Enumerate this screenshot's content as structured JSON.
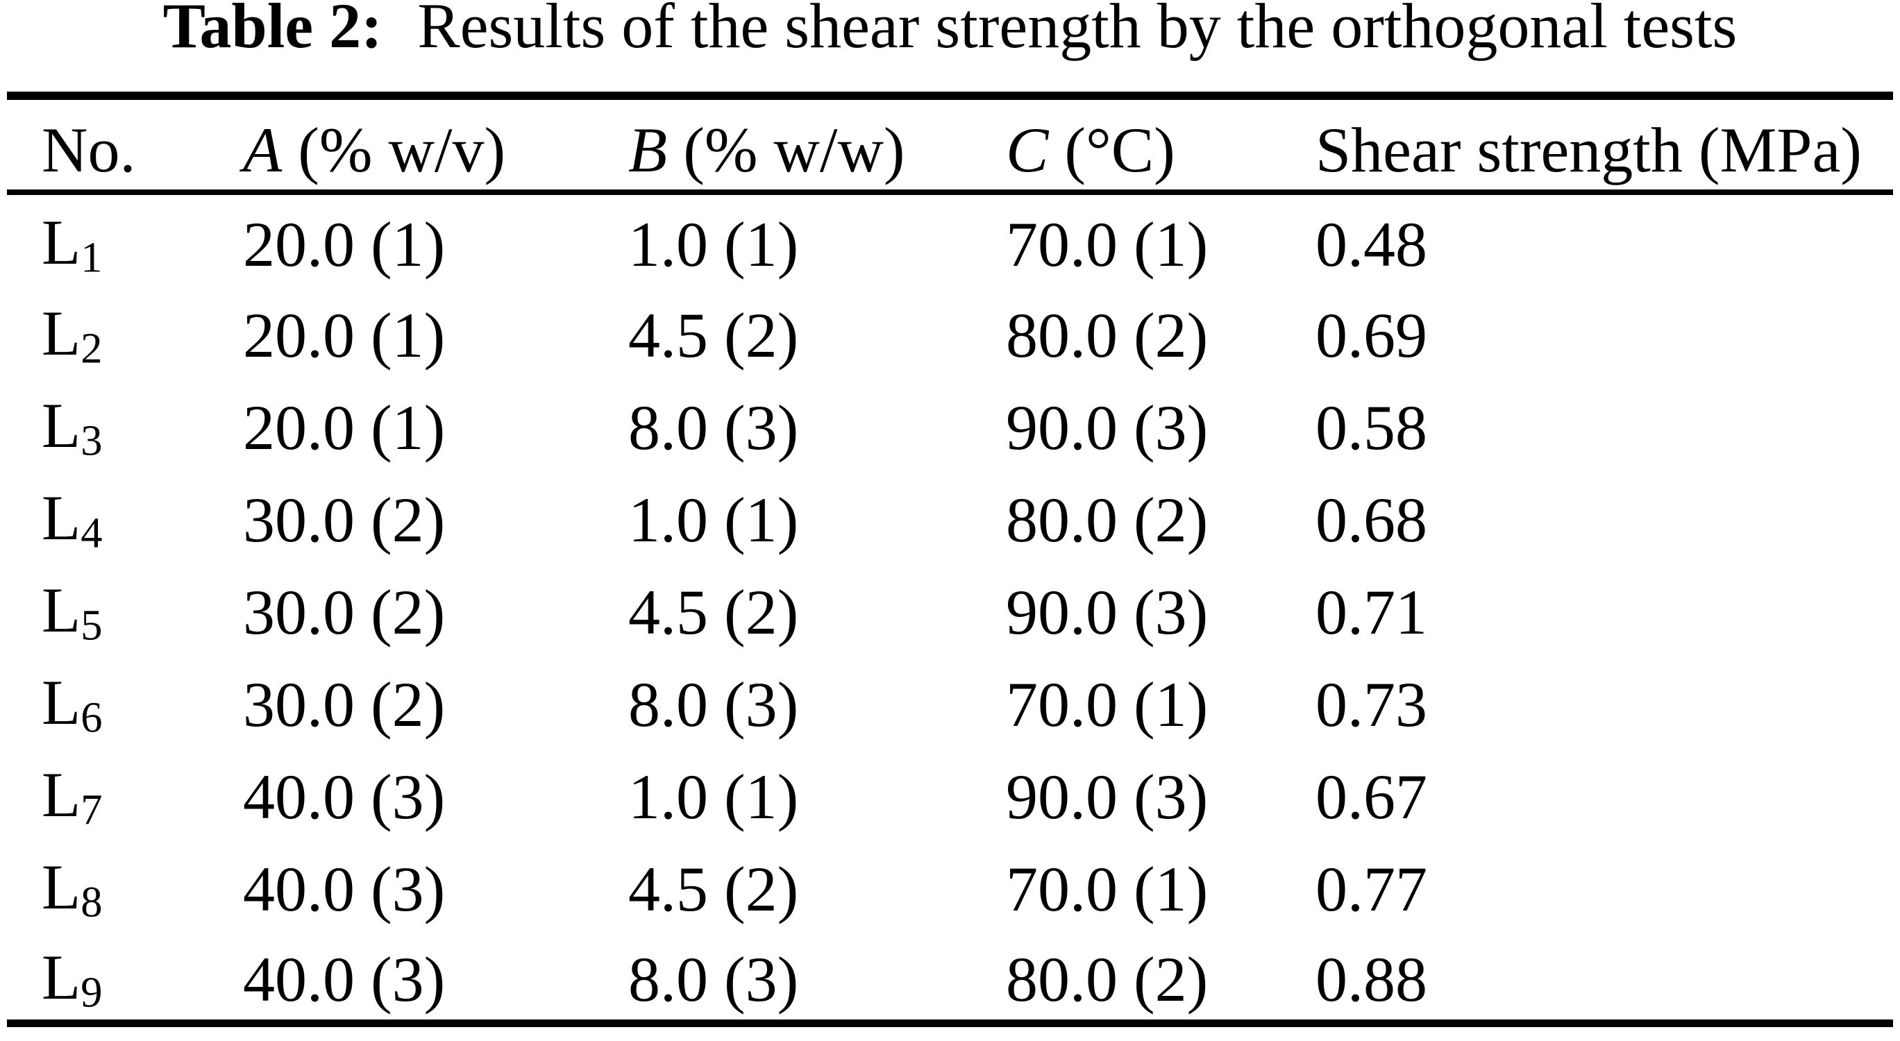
{
  "title": {
    "label": "Table 2:",
    "text": "Results of the shear strength by the orthogonal tests"
  },
  "colors": {
    "text": "#000000",
    "background": "#ffffff",
    "rule": "#000000"
  },
  "table": {
    "columns": [
      {
        "italic": "",
        "text": "No."
      },
      {
        "italic": "A",
        "text": " (% w/v)"
      },
      {
        "italic": "B",
        "text": " (% w/w)"
      },
      {
        "italic": "C",
        "text": " (°C)"
      },
      {
        "italic": "",
        "text": "Shear strength (MPa)"
      }
    ],
    "rows": [
      {
        "label_base": "L",
        "label_sub": "1",
        "a": "20.0 (1)",
        "b": "1.0 (1)",
        "c": "70.0 (1)",
        "shear": "0.48"
      },
      {
        "label_base": "L",
        "label_sub": "2",
        "a": "20.0 (1)",
        "b": "4.5 (2)",
        "c": "80.0 (2)",
        "shear": "0.69"
      },
      {
        "label_base": "L",
        "label_sub": "3",
        "a": "20.0 (1)",
        "b": "8.0 (3)",
        "c": "90.0 (3)",
        "shear": "0.58"
      },
      {
        "label_base": "L",
        "label_sub": "4",
        "a": "30.0 (2)",
        "b": "1.0 (1)",
        "c": "80.0 (2)",
        "shear": "0.68"
      },
      {
        "label_base": "L",
        "label_sub": "5",
        "a": "30.0 (2)",
        "b": "4.5 (2)",
        "c": "90.0 (3)",
        "shear": "0.71"
      },
      {
        "label_base": "L",
        "label_sub": "6",
        "a": "30.0 (2)",
        "b": "8.0 (3)",
        "c": "70.0 (1)",
        "shear": "0.73"
      },
      {
        "label_base": "L",
        "label_sub": "7",
        "a": "40.0 (3)",
        "b": "1.0 (1)",
        "c": "90.0 (3)",
        "shear": "0.67"
      },
      {
        "label_base": "L",
        "label_sub": "8",
        "a": "40.0 (3)",
        "b": "4.5 (2)",
        "c": "70.0 (1)",
        "shear": "0.77"
      },
      {
        "label_base": "L",
        "label_sub": "9",
        "a": "40.0 (3)",
        "b": "8.0 (3)",
        "c": "80.0 (2)",
        "shear": "0.88"
      }
    ]
  },
  "chart_data": {
    "type": "table",
    "title": "Table 2: Results of the shear strength by the orthogonal tests",
    "columns": [
      "No.",
      "A (% w/v)",
      "B (% w/w)",
      "C (°C)",
      "Shear strength (MPa)"
    ],
    "rows": [
      [
        "L1",
        "20.0 (1)",
        "1.0 (1)",
        "70.0 (1)",
        "0.48"
      ],
      [
        "L2",
        "20.0 (1)",
        "4.5 (2)",
        "80.0 (2)",
        "0.69"
      ],
      [
        "L3",
        "20.0 (1)",
        "8.0 (3)",
        "90.0 (3)",
        "0.58"
      ],
      [
        "L4",
        "30.0 (2)",
        "1.0 (1)",
        "80.0 (2)",
        "0.68"
      ],
      [
        "L5",
        "30.0 (2)",
        "4.5 (2)",
        "90.0 (3)",
        "0.71"
      ],
      [
        "L6",
        "30.0 (2)",
        "8.0 (3)",
        "70.0 (1)",
        "0.73"
      ],
      [
        "L7",
        "40.0 (3)",
        "1.0 (1)",
        "90.0 (3)",
        "0.67"
      ],
      [
        "L8",
        "40.0 (3)",
        "4.5 (2)",
        "70.0 (1)",
        "0.77"
      ],
      [
        "L9",
        "40.0 (3)",
        "8.0 (3)",
        "80.0 (2)",
        "0.88"
      ]
    ]
  }
}
